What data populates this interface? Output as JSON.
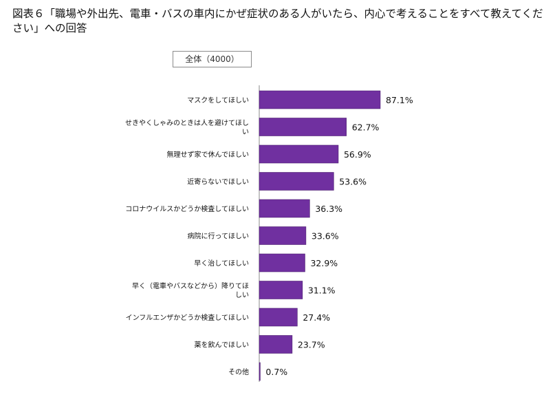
{
  "title": "図表６「職場や外出先、電車・バスの車内にかぜ症状のある人がいたら、内心で考えることをすべて教えてください」への回答",
  "filter": {
    "label": "全体（4000）"
  },
  "colors": {
    "bar": "#7030a0",
    "bar_edge": "#4b1e6e"
  },
  "chart_data": {
    "type": "bar",
    "orientation": "horizontal",
    "value_suffix": "%",
    "categories": [
      [
        "マスクをしてほしい"
      ],
      [
        "せきやくしゃみのときは人を避けてほし",
        "い"
      ],
      [
        "無理せず家で休んでほしい"
      ],
      [
        "近寄らないでほしい"
      ],
      [
        "コロナウイルスかどうか検査してほしい"
      ],
      [
        "病院に行ってほしい"
      ],
      [
        "早く治してほしい"
      ],
      [
        "早く（電車やバスなどから）降りてほ",
        "しい"
      ],
      [
        "インフルエンザかどうか検査してほしい"
      ],
      [
        "薬を飲んでほしい"
      ],
      [
        "その他"
      ]
    ],
    "values": [
      87.1,
      62.7,
      56.9,
      53.6,
      36.3,
      33.6,
      32.9,
      31.1,
      27.4,
      23.7,
      0.7
    ],
    "xlim": [
      0,
      87.1
    ],
    "grid": false,
    "legend": "none"
  }
}
